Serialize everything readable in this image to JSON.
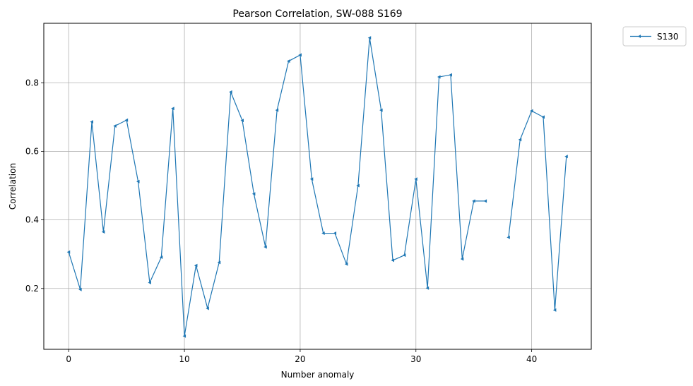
{
  "chart_data": {
    "type": "line",
    "title": "Pearson Correlation, SW-088  S169",
    "xlabel": "Number anomaly",
    "ylabel": "Correlation",
    "xlim": [
      -2.15,
      45.15
    ],
    "ylim": [
      0.0225,
      0.9735
    ],
    "xticks": [
      0,
      10,
      20,
      30,
      40
    ],
    "yticks": [
      0.2,
      0.4,
      0.6,
      0.8
    ],
    "grid": true,
    "legend_position": "outside-top-right",
    "series": [
      {
        "name": "S130",
        "color": "#1f77b4",
        "marker": "triangle-left",
        "x": [
          0,
          1,
          2,
          3,
          4,
          5,
          6,
          7,
          8,
          9,
          10,
          11,
          12,
          13,
          14,
          15,
          16,
          17,
          18,
          19,
          20,
          21,
          22,
          23,
          24,
          25,
          26,
          27,
          28,
          29,
          30,
          31,
          32,
          33,
          34,
          35,
          36,
          37,
          38,
          39,
          40,
          41,
          42,
          43
        ],
        "y": [
          0.306,
          0.197,
          0.686,
          0.365,
          0.674,
          0.691,
          0.512,
          0.217,
          0.291,
          0.725,
          0.061,
          0.267,
          0.142,
          0.276,
          0.773,
          0.69,
          0.476,
          0.321,
          0.72,
          0.863,
          0.881,
          0.519,
          0.361,
          0.361,
          0.271,
          0.5,
          0.931,
          0.72,
          0.282,
          0.297,
          0.519,
          0.201,
          0.817,
          0.823,
          0.286,
          0.455,
          0.455,
          null,
          0.349,
          0.634,
          0.718,
          0.7,
          0.137,
          0.585
        ]
      }
    ]
  }
}
